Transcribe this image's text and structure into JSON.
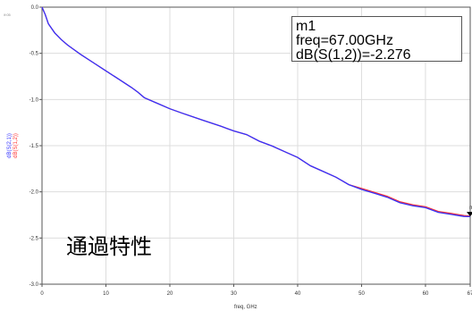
{
  "chart_data": {
    "type": "line",
    "xlabel": "freq, GHz",
    "ylabel_series": [
      "dB(S(2,1))",
      "dB(S(1,2))"
    ],
    "xlim": [
      0,
      67
    ],
    "ylim": [
      -3.0,
      0.0
    ],
    "x_ticks": [
      0,
      10,
      20,
      30,
      40,
      50,
      60,
      67
    ],
    "y_ticks": [
      "0.0",
      "-0.5",
      "-1.0",
      "-1.5",
      "-2.0",
      "-2.5",
      "-3.0"
    ],
    "y_tick_values": [
      0.0,
      -0.5,
      -1.0,
      -1.5,
      -2.0,
      -2.5,
      -3.0
    ],
    "grid": true,
    "series": [
      {
        "name": "dB(S(2,1))",
        "color": "#3333ff",
        "x": [
          0,
          0.5,
          1,
          2,
          3,
          4,
          5,
          6,
          8,
          10,
          12,
          14,
          15,
          16,
          18,
          20,
          22,
          25,
          28,
          30,
          32,
          34,
          36,
          38,
          40,
          42,
          44,
          46,
          48,
          50,
          52,
          54,
          56,
          58,
          60,
          62,
          64,
          66,
          67
        ],
        "y": [
          0.0,
          -0.08,
          -0.18,
          -0.28,
          -0.35,
          -0.41,
          -0.46,
          -0.51,
          -0.6,
          -0.69,
          -0.78,
          -0.87,
          -0.92,
          -0.98,
          -1.04,
          -1.1,
          -1.15,
          -1.22,
          -1.29,
          -1.34,
          -1.38,
          -1.44,
          -1.5,
          -1.57,
          -1.64,
          -1.71,
          -1.78,
          -1.85,
          -1.91,
          -1.97,
          -2.02,
          -2.07,
          -2.11,
          -2.15,
          -2.18,
          -2.21,
          -2.24,
          -2.27,
          -2.28
        ]
      },
      {
        "name": "dB(S(1,2))",
        "color": "#ff3333",
        "x": [
          0,
          0.5,
          1,
          2,
          3,
          4,
          5,
          6,
          8,
          10,
          12,
          14,
          15,
          16,
          18,
          20,
          22,
          25,
          28,
          30,
          32,
          34,
          36,
          38,
          40,
          42,
          44,
          46,
          48,
          50,
          52,
          54,
          56,
          58,
          60,
          62,
          64,
          66,
          67
        ],
        "y": [
          0.0,
          -0.08,
          -0.18,
          -0.28,
          -0.35,
          -0.41,
          -0.46,
          -0.51,
          -0.6,
          -0.69,
          -0.78,
          -0.87,
          -0.92,
          -0.98,
          -1.04,
          -1.1,
          -1.15,
          -1.22,
          -1.29,
          -1.34,
          -1.38,
          -1.44,
          -1.5,
          -1.57,
          -1.64,
          -1.71,
          -1.78,
          -1.85,
          -1.91,
          -1.96,
          -2.01,
          -2.06,
          -2.1,
          -2.14,
          -2.17,
          -2.2,
          -2.23,
          -2.26,
          -2.276
        ]
      }
    ],
    "marker": {
      "name": "m1",
      "freq_text": "freq=67.00GHz",
      "value_text": "dB(S(1,2))=-2.276",
      "x": 67,
      "y": -2.276,
      "label": "m"
    },
    "annotation": "通過特性"
  }
}
